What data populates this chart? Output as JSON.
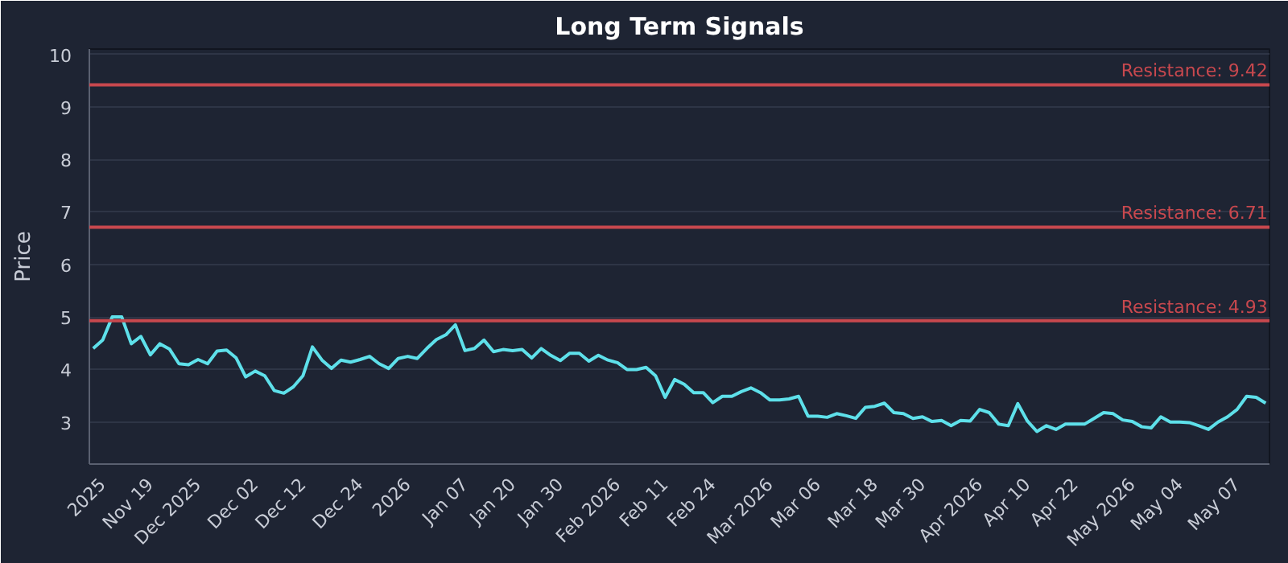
{
  "chart_data": {
    "type": "line",
    "title": "Long Term Signals",
    "ylabel": "Price",
    "categories": [
      null,
      "2025",
      null,
      null,
      null,
      null,
      "Nov 19",
      null,
      null,
      null,
      null,
      "Dec 2025",
      null,
      null,
      null,
      null,
      null,
      "Dec 02",
      null,
      null,
      null,
      null,
      "Dec 12",
      null,
      null,
      null,
      null,
      null,
      "Dec 24",
      null,
      null,
      null,
      null,
      "2026",
      null,
      null,
      null,
      null,
      null,
      "Jan 07",
      null,
      null,
      null,
      null,
      "Jan 20",
      null,
      null,
      null,
      null,
      "Jan 30",
      null,
      null,
      null,
      null,
      null,
      "Feb 2026",
      null,
      null,
      null,
      null,
      "Feb 11",
      null,
      null,
      null,
      null,
      "Feb 24",
      null,
      null,
      null,
      null,
      null,
      "Mar 2026",
      null,
      null,
      null,
      null,
      "Mar 06",
      null,
      null,
      null,
      null,
      null,
      "Mar 18",
      null,
      null,
      null,
      null,
      "Mar 30",
      null,
      null,
      null,
      null,
      null,
      "Apr 2026",
      null,
      null,
      null,
      null,
      "Apr 10",
      null,
      null,
      null,
      null,
      "Apr 22",
      null,
      null,
      null,
      null,
      null,
      "May 2026",
      null,
      null,
      null,
      null,
      "May 04",
      null,
      null,
      null,
      null,
      null,
      "May 07",
      null,
      null,
      null
    ],
    "series": [
      {
        "color": "#5ee0ea",
        "values": [
          4.4,
          4.56,
          5.0,
          5.0,
          4.49,
          4.63,
          4.28,
          4.49,
          4.39,
          4.11,
          4.09,
          4.19,
          4.11,
          4.35,
          4.37,
          4.22,
          3.86,
          3.97,
          3.88,
          3.6,
          3.55,
          3.67,
          3.88,
          4.43,
          4.18,
          4.02,
          4.18,
          4.14,
          4.19,
          4.25,
          4.11,
          4.02,
          4.21,
          4.25,
          4.21,
          4.4,
          4.57,
          4.66,
          4.85,
          4.36,
          4.4,
          4.56,
          4.34,
          4.38,
          4.36,
          4.38,
          4.22,
          4.4,
          4.27,
          4.17,
          4.31,
          4.31,
          4.16,
          4.27,
          4.18,
          4.13,
          4.0,
          4.0,
          4.04,
          3.88,
          3.47,
          3.81,
          3.72,
          3.56,
          3.56,
          3.37,
          3.49,
          3.49,
          3.58,
          3.65,
          3.56,
          3.42,
          3.42,
          3.44,
          3.49,
          3.11,
          3.11,
          3.09,
          3.16,
          3.12,
          3.07,
          3.28,
          3.3,
          3.36,
          3.18,
          3.16,
          3.07,
          3.1,
          3.01,
          3.03,
          2.93,
          3.03,
          3.02,
          3.24,
          3.18,
          2.96,
          2.93,
          3.35,
          3.02,
          2.82,
          2.93,
          2.86,
          2.96,
          2.96,
          2.96,
          3.07,
          3.18,
          3.16,
          3.04,
          3.01,
          2.91,
          2.89,
          3.1,
          3.0,
          3.0,
          2.99,
          2.93,
          2.86,
          3.0,
          3.1,
          3.24,
          3.49,
          3.47,
          3.36
        ]
      }
    ],
    "ylim": [
      2.2,
      10.1
    ],
    "yticks": [
      3,
      4,
      5,
      6,
      7,
      8,
      9,
      10
    ],
    "grid": "y",
    "marker": "none",
    "line_style": "solid",
    "ref_lines": [
      {
        "axis": "y",
        "value": 9.42,
        "label": "Resistance: 9.42",
        "color": "#c8484e"
      },
      {
        "axis": "y",
        "value": 6.71,
        "label": "Resistance: 6.71",
        "color": "#c8484e"
      },
      {
        "axis": "y",
        "value": 4.93,
        "label": "Resistance: 4.93",
        "color": "#c8484e"
      }
    ]
  }
}
